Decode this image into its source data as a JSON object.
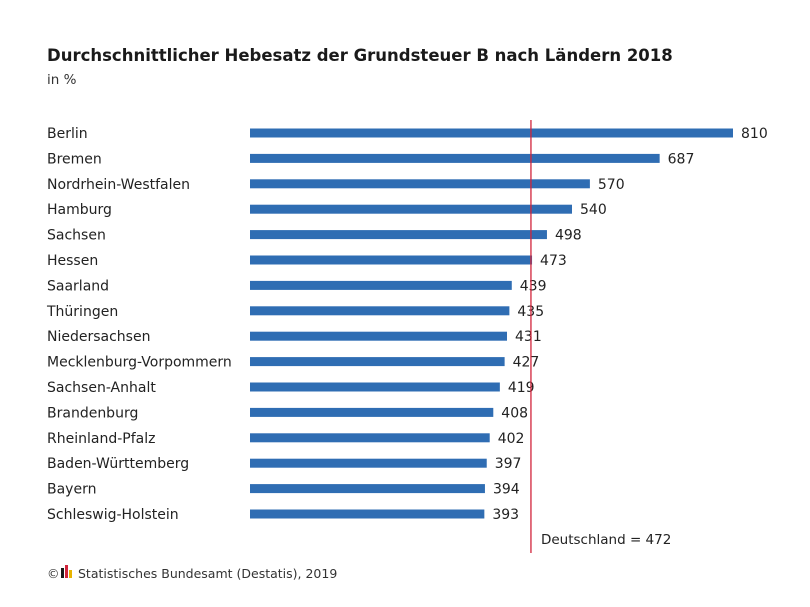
{
  "chart_data": {
    "type": "bar",
    "orientation": "horizontal",
    "title": "Durchschnittlicher Hebesatz der Grundsteuer B nach Ländern 2018",
    "subtitle": "in %",
    "categories": [
      "Berlin",
      "Bremen",
      "Nordrhein-Westfalen",
      "Hamburg",
      "Sachsen",
      "Hessen",
      "Saarland",
      "Thüringen",
      "Niedersachsen",
      "Mecklenburg-Vorpommern",
      "Sachsen-Anhalt",
      "Brandenburg",
      "Rheinland-Pfalz",
      "Baden-Württemberg",
      "Bayern",
      "Schleswig-Holstein"
    ],
    "values": [
      810,
      687,
      570,
      540,
      498,
      473,
      439,
      435,
      431,
      427,
      419,
      408,
      402,
      397,
      394,
      393
    ],
    "xlim": [
      0,
      810
    ],
    "reference_line": {
      "value": 472,
      "label": "Deutschland = 472",
      "color": "#d1243b"
    },
    "bar_color": "#2f6db3",
    "grid": false,
    "legend": "none"
  },
  "source": {
    "symbol": "©",
    "text": "Statistisches Bundesamt (Destatis), 2019"
  }
}
